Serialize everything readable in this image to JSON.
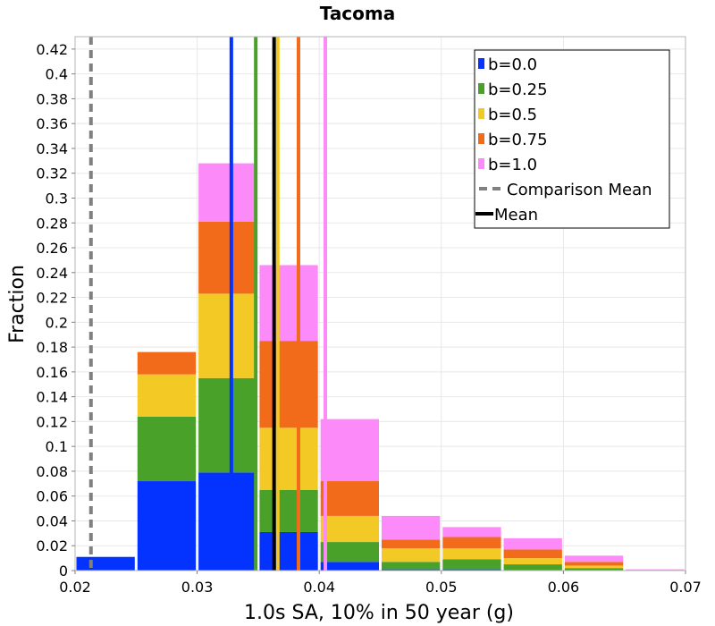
{
  "chart_data": {
    "type": "bar",
    "stacked": true,
    "title": "Tacoma",
    "xlabel": "1.0s SA, 10% in 50 year (g)",
    "ylabel": "Fraction",
    "xlim": [
      0.02,
      0.07
    ],
    "ylim": [
      0,
      0.43
    ],
    "xticks": [
      "0.02",
      "0.03",
      "0.04",
      "0.05",
      "0.06",
      "0.07"
    ],
    "yticks": [
      "0",
      "0.02",
      "0.04",
      "0.06",
      "0.08",
      "0.1",
      "0.12",
      "0.14",
      "0.16",
      "0.18",
      "0.2",
      "0.22",
      "0.24",
      "0.26",
      "0.28",
      "0.3",
      "0.32",
      "0.34",
      "0.36",
      "0.38",
      "0.4",
      "0.42"
    ],
    "grid": true,
    "legend_position": "top-right",
    "bin_starts": [
      0.02,
      0.025,
      0.03,
      0.035,
      0.04,
      0.045,
      0.05,
      0.055,
      0.06,
      0.065
    ],
    "bin_width": 0.005,
    "series": [
      {
        "name": "b=0.0",
        "color": "#0433ff",
        "values": [
          0.011,
          0.072,
          0.079,
          0.031,
          0.007,
          0.001,
          0.001,
          0,
          0,
          0
        ],
        "mean": 0.0328
      },
      {
        "name": "b=0.25",
        "color": "#4aa12a",
        "values": [
          0,
          0.052,
          0.076,
          0.034,
          0.016,
          0.006,
          0.008,
          0.005,
          0.002,
          0
        ],
        "mean": 0.0348
      },
      {
        "name": "b=0.5",
        "color": "#f2c925",
        "values": [
          0,
          0.034,
          0.068,
          0.05,
          0.021,
          0.011,
          0.009,
          0.005,
          0.002,
          0
        ],
        "mean": 0.0366
      },
      {
        "name": "b=0.75",
        "color": "#f26b1b",
        "values": [
          0,
          0.018,
          0.058,
          0.07,
          0.028,
          0.007,
          0.009,
          0.007,
          0.003,
          0
        ],
        "mean": 0.0383
      },
      {
        "name": "b=1.0",
        "color": "#fc8af8",
        "values": [
          0,
          0,
          0.047,
          0.061,
          0.05,
          0.019,
          0.008,
          0.009,
          0.005,
          0.001
        ],
        "mean": 0.0405
      }
    ],
    "comparison_mean": {
      "name": "Comparison Mean",
      "x": 0.0213,
      "color": "#808080"
    },
    "overall_mean": {
      "name": "Mean",
      "x": 0.0363,
      "color": "#000000"
    }
  }
}
